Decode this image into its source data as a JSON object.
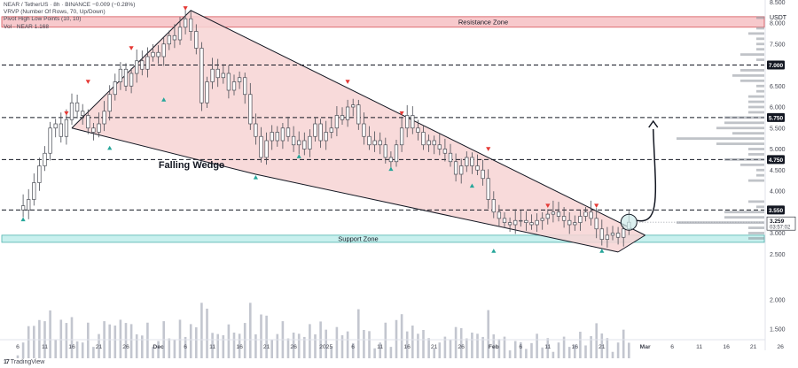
{
  "header": {
    "line1": "NEAR / TetherUS · 8h · BINANCE  −0.009 (−0.28%)",
    "line2": "VRVP (Number Of Rows, 70, Up/Down)",
    "line3": "Pivot High Low Points (10, 10)",
    "line4": "Vol · NEAR  1.168"
  },
  "brand": "TradingView",
  "chart_data": {
    "type": "line",
    "currency_label": "USDT",
    "y_ticks": [
      {
        "value": 8.5,
        "label": "8.500"
      },
      {
        "value": 8.0,
        "label": "8.000"
      },
      {
        "value": 7.5,
        "label": "7.500"
      },
      {
        "value": 6.5,
        "label": "6.500"
      },
      {
        "value": 6.0,
        "label": "6.000"
      },
      {
        "value": 5.5,
        "label": "5.500"
      },
      {
        "value": 5.0,
        "label": "5.000"
      },
      {
        "value": 4.5,
        "label": "4.500"
      },
      {
        "value": 4.0,
        "label": "4.000"
      },
      {
        "value": 3.0,
        "label": "3.000"
      },
      {
        "value": 2.5,
        "label": "2.500"
      }
    ],
    "volume_ticks": [
      {
        "value": 2.0,
        "label": "2.000"
      },
      {
        "value": 1.5,
        "label": "1.500"
      }
    ],
    "x_ticks": [
      {
        "day": 0,
        "label": "6"
      },
      {
        "day": 5,
        "label": "11"
      },
      {
        "day": 10,
        "label": "16"
      },
      {
        "day": 15,
        "label": "21"
      },
      {
        "day": 20,
        "label": "26"
      },
      {
        "day": 26,
        "label": "Dec"
      },
      {
        "day": 31,
        "label": "6"
      },
      {
        "day": 36,
        "label": "11"
      },
      {
        "day": 41,
        "label": "16"
      },
      {
        "day": 46,
        "label": "21"
      },
      {
        "day": 51,
        "label": "26"
      },
      {
        "day": 57,
        "label": "2025"
      },
      {
        "day": 62,
        "label": "6"
      },
      {
        "day": 67,
        "label": "11"
      },
      {
        "day": 72,
        "label": "16"
      },
      {
        "day": 77,
        "label": "21"
      },
      {
        "day": 82,
        "label": "26"
      },
      {
        "day": 88,
        "label": "Feb"
      },
      {
        "day": 93,
        "label": "6"
      },
      {
        "day": 98,
        "label": "11"
      },
      {
        "day": 103,
        "label": "16"
      },
      {
        "day": 108,
        "label": "21"
      },
      {
        "day": 116,
        "label": "Mar"
      },
      {
        "day": 121,
        "label": "6"
      },
      {
        "day": 126,
        "label": "11"
      },
      {
        "day": 131,
        "label": "16"
      },
      {
        "day": 136,
        "label": "21"
      },
      {
        "day": 141,
        "label": "26"
      }
    ],
    "price_path": [
      [
        0,
        3.65
      ],
      [
        1,
        3.55
      ],
      [
        2,
        3.8
      ],
      [
        3,
        4.2
      ],
      [
        4,
        4.6
      ],
      [
        5,
        4.9
      ],
      [
        6,
        5.5
      ],
      [
        7,
        5.6
      ],
      [
        8,
        5.3
      ],
      [
        9,
        5.7
      ],
      [
        10,
        6.1
      ],
      [
        11,
        5.9
      ],
      [
        12,
        5.8
      ],
      [
        13,
        5.5
      ],
      [
        14,
        5.4
      ],
      [
        15,
        5.6
      ],
      [
        16,
        5.9
      ],
      [
        17,
        6.3
      ],
      [
        18,
        6.6
      ],
      [
        19,
        6.9
      ],
      [
        20,
        6.5
      ],
      [
        21,
        6.8
      ],
      [
        22,
        7.1
      ],
      [
        23,
        6.9
      ],
      [
        24,
        7.2
      ],
      [
        25,
        7.3
      ],
      [
        26,
        7.2
      ],
      [
        27,
        7.5
      ],
      [
        28,
        7.7
      ],
      [
        29,
        7.6
      ],
      [
        30,
        7.9
      ],
      [
        31,
        8.1
      ],
      [
        32,
        7.8
      ],
      [
        33,
        7.4
      ],
      [
        34,
        6.1
      ],
      [
        35,
        6.6
      ],
      [
        36,
        6.9
      ],
      [
        37,
        6.7
      ],
      [
        38,
        6.8
      ],
      [
        39,
        6.4
      ],
      [
        40,
        6.6
      ],
      [
        41,
        6.7
      ],
      [
        42,
        6.3
      ],
      [
        43,
        5.6
      ],
      [
        44,
        5.3
      ],
      [
        45,
        4.8
      ],
      [
        46,
        5.2
      ],
      [
        47,
        5.4
      ],
      [
        48,
        5.2
      ],
      [
        49,
        5.5
      ],
      [
        50,
        5.3
      ],
      [
        51,
        5.1
      ],
      [
        52,
        5.2
      ],
      [
        53,
        5.0
      ],
      [
        54,
        5.3
      ],
      [
        55,
        5.6
      ],
      [
        56,
        5.2
      ],
      [
        57,
        5.4
      ],
      [
        58,
        5.5
      ],
      [
        59,
        5.8
      ],
      [
        60,
        5.7
      ],
      [
        61,
        6.0
      ],
      [
        62,
        6.05
      ],
      [
        63,
        5.6
      ],
      [
        64,
        5.3
      ],
      [
        65,
        5.1
      ],
      [
        66,
        5.2
      ],
      [
        67,
        5.1
      ],
      [
        68,
        4.8
      ],
      [
        69,
        4.7
      ],
      [
        70,
        5.1
      ],
      [
        71,
        5.5
      ],
      [
        72,
        5.8
      ],
      [
        73,
        5.5
      ],
      [
        74,
        5.4
      ],
      [
        75,
        5.1
      ],
      [
        76,
        5.2
      ],
      [
        77,
        5.1
      ],
      [
        78,
        5.0
      ],
      [
        79,
        4.9
      ],
      [
        80,
        4.7
      ],
      [
        81,
        4.4
      ],
      [
        82,
        4.6
      ],
      [
        83,
        4.8
      ],
      [
        84,
        4.6
      ],
      [
        85,
        4.5
      ],
      [
        86,
        4.3
      ],
      [
        87,
        3.8
      ],
      [
        88,
        3.5
      ],
      [
        89,
        3.35
      ],
      [
        90,
        3.25
      ],
      [
        91,
        3.2
      ],
      [
        92,
        3.3
      ],
      [
        93,
        3.3
      ],
      [
        94,
        3.25
      ],
      [
        95,
        3.2
      ],
      [
        96,
        3.3
      ],
      [
        97,
        3.35
      ],
      [
        98,
        3.45
      ],
      [
        99,
        3.5
      ],
      [
        100,
        3.4
      ],
      [
        101,
        3.3
      ],
      [
        102,
        3.2
      ],
      [
        103,
        3.25
      ],
      [
        104,
        3.4
      ],
      [
        105,
        3.5
      ],
      [
        106,
        3.35
      ],
      [
        107,
        3.1
      ],
      [
        108,
        2.85
      ],
      [
        109,
        2.95
      ],
      [
        110,
        3.0
      ],
      [
        111,
        2.9
      ],
      [
        112,
        3.1
      ],
      [
        113,
        3.259
      ]
    ],
    "current_price": {
      "value": 3.259,
      "label": "3.259",
      "countdown": "03:57:02"
    },
    "price_level_labels": [
      {
        "value": 7.0,
        "label": "7.000"
      },
      {
        "value": 5.75,
        "label": "5.750"
      },
      {
        "value": 4.75,
        "label": "4.750"
      },
      {
        "value": 3.55,
        "label": "3.550"
      }
    ],
    "dashed_levels": [
      7.0,
      5.75,
      4.75,
      3.55
    ],
    "resistance_zone": {
      "label": "Resistance Zone",
      "low": 7.9,
      "high": 8.15
    },
    "support_zone": {
      "label": "Support Zone",
      "low": 2.78,
      "high": 2.95
    },
    "wedge_label": "Falling Wedge",
    "wedge_upper": [
      [
        10,
        5.5
      ],
      [
        32,
        8.3
      ],
      [
        116,
        2.95
      ]
    ],
    "wedge_lower": [
      [
        10,
        5.5
      ],
      [
        44,
        4.4
      ],
      [
        111,
        2.55
      ]
    ],
    "projection_target": 5.6,
    "pivot_highs": [
      [
        9,
        5.75
      ],
      [
        13,
        6.5
      ],
      [
        21,
        7.3
      ],
      [
        31,
        8.25
      ],
      [
        61,
        6.5
      ],
      [
        71,
        5.75
      ],
      [
        87,
        4.9
      ],
      [
        98,
        3.55
      ],
      [
        107,
        3.55
      ]
    ],
    "pivot_lows": [
      [
        1,
        3.45
      ],
      [
        17,
        5.15
      ],
      [
        27,
        6.3
      ],
      [
        44,
        4.45
      ],
      [
        52,
        4.95
      ],
      [
        69,
        4.65
      ],
      [
        84,
        4.25
      ],
      [
        88,
        2.7
      ],
      [
        108,
        2.7
      ]
    ],
    "colors": {
      "candle_up": "#26a69a",
      "candle_down": "#ef5350",
      "wedge_fill": "#f7d3d3",
      "resistance_fill": "#f7c9cc",
      "support_fill": "#c8f0ee",
      "pivot_high": "#e53935",
      "pivot_low": "#26a69a",
      "volume": "#c3c6cf",
      "profile": "#8d919a"
    }
  }
}
